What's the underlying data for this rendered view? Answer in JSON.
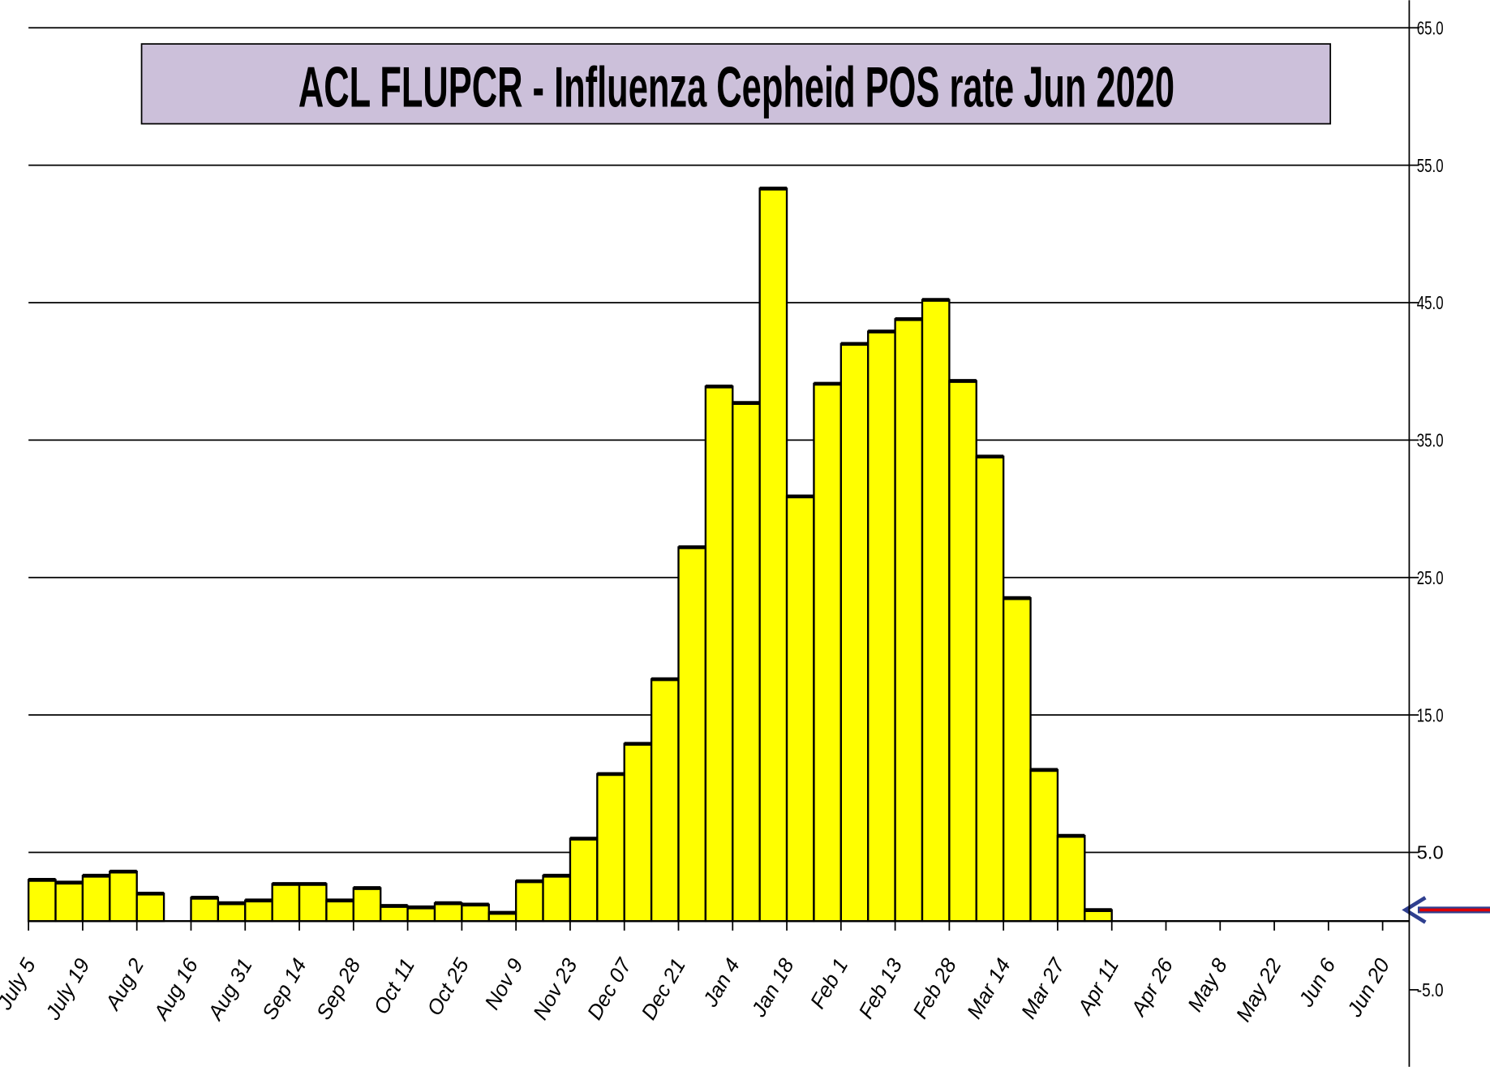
{
  "chart_data": {
    "type": "bar",
    "title": "ACL FLUPCR -  Influenza Cepheid POS rate Jun 2020",
    "categories": [
      "July 5",
      null,
      "July 19",
      null,
      "Aug 2",
      null,
      "Aug 16",
      null,
      "Aug 31",
      null,
      "Sep 14",
      null,
      "Sep 28",
      null,
      "Oct 11",
      null,
      "Oct 25",
      null,
      "Nov 9",
      null,
      "Nov 23",
      null,
      "Dec 07",
      null,
      "Dec 21",
      null,
      "Jan 4",
      null,
      "Jan 18",
      null,
      "Feb 1",
      null,
      "Feb 13",
      null,
      "Feb 28",
      null,
      "Mar 14",
      null,
      "Mar 27",
      null,
      "Apr 11",
      null,
      "Apr 26",
      null,
      "May 8",
      null,
      "May 22",
      null,
      "Jun 6",
      null,
      "Jun 20"
    ],
    "values": [
      3.0,
      2.8,
      3.3,
      3.6,
      2.0,
      null,
      1.7,
      1.3,
      1.5,
      2.7,
      2.7,
      1.5,
      2.4,
      1.1,
      1.0,
      1.3,
      1.2,
      0.6,
      2.9,
      3.3,
      6.0,
      10.7,
      12.9,
      17.6,
      27.2,
      38.9,
      37.7,
      53.3,
      30.9,
      39.1,
      42.0,
      42.9,
      43.8,
      45.2,
      39.3,
      33.8,
      23.5,
      11.0,
      6.2,
      0.8,
      null,
      null,
      null,
      null,
      null,
      null,
      null,
      null,
      null,
      null,
      null
    ],
    "color": "#ffff00",
    "ylim": [
      -5,
      65
    ],
    "yticks": [
      {
        "value": -5,
        "label": "-5.0"
      },
      {
        "value": 5,
        "label": "5.0"
      },
      {
        "value": 15,
        "label": "15.0"
      },
      {
        "value": 25,
        "label": "25.0"
      },
      {
        "value": 35,
        "label": "35.0"
      },
      {
        "value": 45,
        "label": "45.0"
      },
      {
        "value": 55,
        "label": "55.0"
      },
      {
        "value": 65,
        "label": "65.0"
      }
    ],
    "grid": true
  }
}
